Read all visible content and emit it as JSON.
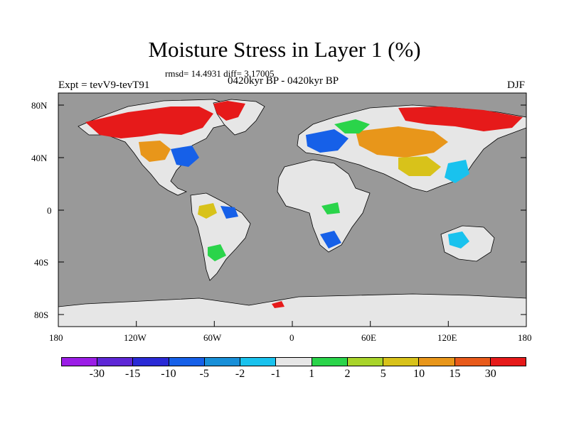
{
  "title": "Moisture Stress in Layer 1 (%)",
  "stats": "rmsd= 14.4931 diff= 3.17005",
  "period": "0420kyr BP - 0420kyr BP",
  "experiment": "Expt = tevV9-tevT91",
  "season": "DJF",
  "map": {
    "lat_ticks": [
      "80N",
      "40N",
      "0",
      "40S",
      "80S"
    ],
    "lon_ticks": [
      "180",
      "120W",
      "60W",
      "0",
      "60E",
      "120E",
      "180"
    ],
    "ocean_color": "#999999",
    "land_color": "#e6e6e6"
  },
  "colorbar": {
    "colors": [
      "#9b1ee6",
      "#5e27d6",
      "#2a2ad6",
      "#1660e8",
      "#188fd8",
      "#19c2ee",
      "#e6e6e6",
      "#2ad44a",
      "#a8d42a",
      "#d8c21a",
      "#e8961a",
      "#e85a1a",
      "#e61a1a"
    ],
    "labels": [
      "-30",
      "-15",
      "-10",
      "-5",
      "-2",
      "-1",
      "1",
      "2",
      "5",
      "10",
      "15",
      "30"
    ]
  }
}
